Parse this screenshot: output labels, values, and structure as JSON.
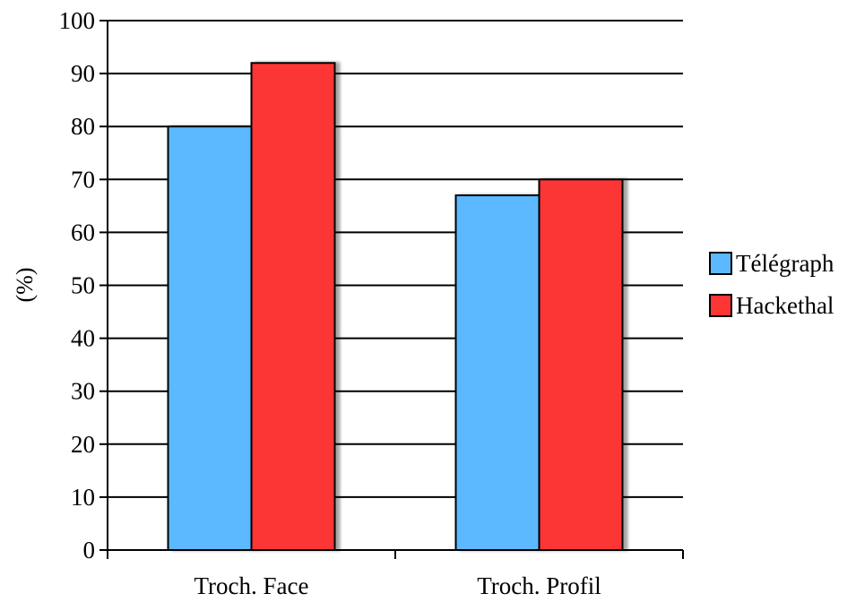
{
  "chart_data": {
    "type": "bar",
    "title": "",
    "xlabel": "",
    "ylabel": "(%)",
    "categories": [
      "Troch. Face",
      "Troch. Profil"
    ],
    "series": [
      {
        "name": "Télégraph",
        "values": [
          80,
          67
        ],
        "color": "#5cb8ff"
      },
      {
        "name": "Hackethal",
        "values": [
          92,
          70
        ],
        "color": "#fc3535"
      }
    ],
    "ylim": [
      0,
      100
    ],
    "yticks": [
      0,
      10,
      20,
      30,
      40,
      50,
      60,
      70,
      80,
      90,
      100
    ],
    "grid": true,
    "legend": "right"
  }
}
